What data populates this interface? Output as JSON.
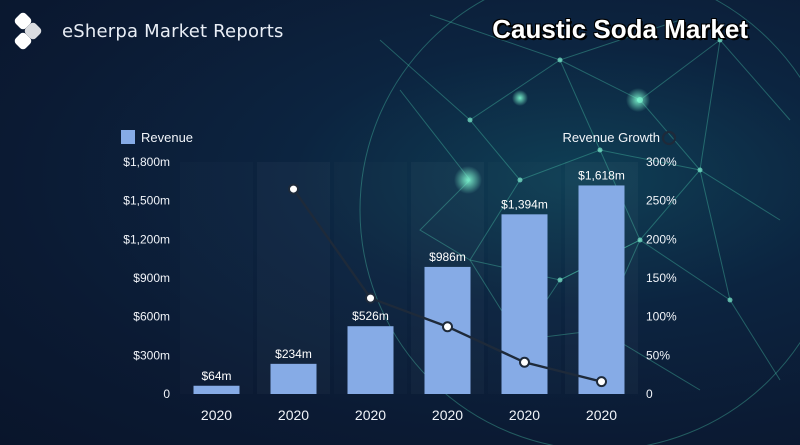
{
  "brand": {
    "name": "eSherpa Market Reports"
  },
  "headline": "Caustic Soda Market",
  "colors": {
    "bar": "#86abe6",
    "line": "#1e2a3a",
    "marker_stroke": "#1e2a3a",
    "background": "#0b1a33",
    "network": "#4fd6b4"
  },
  "chart_data": {
    "type": "bar",
    "categories": [
      "2020",
      "2020",
      "2020",
      "2020",
      "2020",
      "2020"
    ],
    "series": [
      {
        "name": "Revenue",
        "type": "bar",
        "axis": "left",
        "values": [
          64,
          234,
          526,
          986,
          1394,
          1618
        ],
        "labels": [
          "$64m",
          "$234m",
          "$526m",
          "$986m",
          "$1,394m",
          "$1,618m"
        ]
      },
      {
        "name": "Revenue Growth",
        "type": "line",
        "axis": "right",
        "values": [
          null,
          265,
          124,
          87,
          41,
          16
        ]
      }
    ],
    "y_left": {
      "range": [
        0,
        1800
      ],
      "ticks": [
        0,
        300,
        600,
        900,
        1200,
        1500,
        1800
      ],
      "tick_labels": [
        "0",
        "$300m",
        "$600m",
        "$900m",
        "$1,200m",
        "$1,500m",
        "$1,800m"
      ]
    },
    "y_right": {
      "range": [
        0,
        300
      ],
      "ticks": [
        0,
        50,
        100,
        150,
        200,
        250,
        300
      ],
      "tick_labels": [
        "0",
        "50%",
        "100%",
        "150%",
        "200%",
        "250%",
        "300%"
      ]
    },
    "legend": {
      "left": "Revenue",
      "right": "Revenue Growth",
      "placement": "top"
    },
    "grid": false
  }
}
